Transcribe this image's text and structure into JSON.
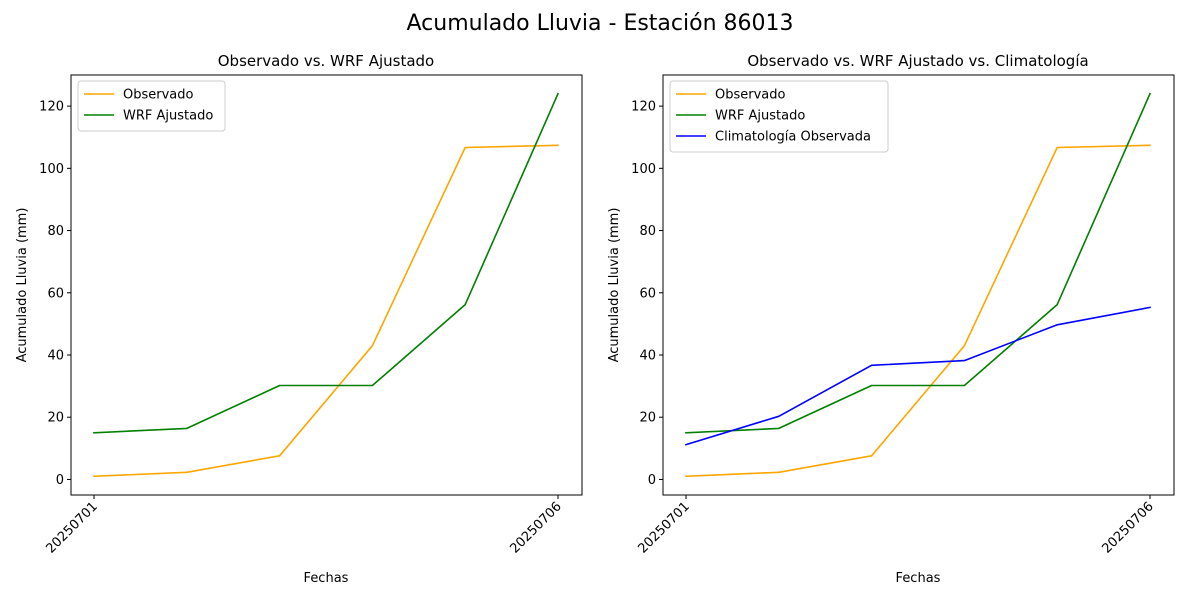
{
  "figure": {
    "suptitle": "Acumulado Lluvia - Estación 86013"
  },
  "chart_data": [
    {
      "type": "line",
      "title": "Observado vs. WRF Ajustado",
      "xlabel": "Fechas",
      "ylabel": "Acumulado Lluvia (mm)",
      "x": [
        "20250701",
        "20250702",
        "20250703",
        "20250704",
        "20250705",
        "20250706"
      ],
      "xticks": [
        "20250701",
        "20250706"
      ],
      "yticks": [
        0,
        20,
        40,
        60,
        80,
        100,
        120
      ],
      "ylim": [
        -5,
        130
      ],
      "legend": "top-left",
      "grid": false,
      "series": [
        {
          "name": "Observado",
          "color": "#ffa500",
          "values": [
            1.0,
            2.3,
            7.6,
            43.0,
            106.7,
            107.4
          ]
        },
        {
          "name": "WRF Ajustado",
          "color": "#008000",
          "values": [
            15.0,
            16.4,
            30.2,
            30.2,
            56.2,
            124.0
          ]
        }
      ]
    },
    {
      "type": "line",
      "title": "Observado vs. WRF Ajustado vs. Climatología",
      "xlabel": "Fechas",
      "ylabel": "Acumulado Lluvia (mm)",
      "x": [
        "20250701",
        "20250702",
        "20250703",
        "20250704",
        "20250705",
        "20250706"
      ],
      "xticks": [
        "20250701",
        "20250706"
      ],
      "yticks": [
        0,
        20,
        40,
        60,
        80,
        100,
        120
      ],
      "ylim": [
        -5,
        130
      ],
      "legend": "top-left",
      "grid": false,
      "series": [
        {
          "name": "Observado",
          "color": "#ffa500",
          "values": [
            1.0,
            2.3,
            7.6,
            43.0,
            106.7,
            107.4
          ]
        },
        {
          "name": "WRF Ajustado",
          "color": "#008000",
          "values": [
            15.0,
            16.4,
            30.2,
            30.2,
            56.2,
            124.0
          ]
        },
        {
          "name": "Climatología Observada",
          "color": "#0000ff",
          "values": [
            11.2,
            20.3,
            36.7,
            38.2,
            49.7,
            55.3
          ]
        }
      ]
    }
  ]
}
